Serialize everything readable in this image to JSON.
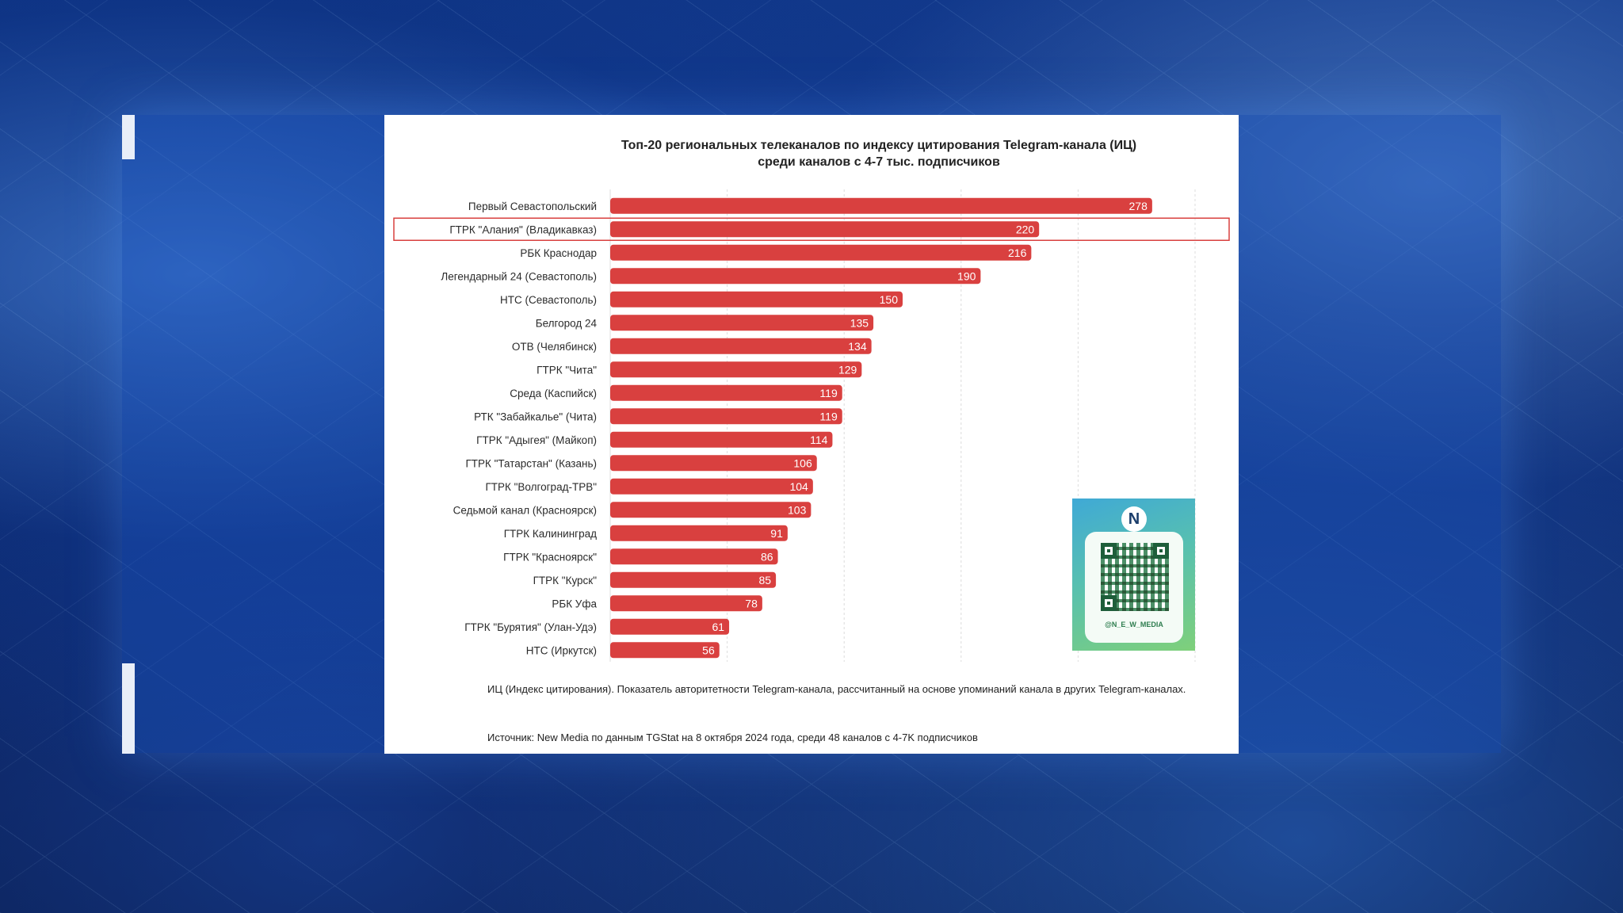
{
  "chart_data": {
    "type": "bar",
    "orientation": "horizontal",
    "title": "Топ-20 региональных телеканалов по индексу цитирования Telegram-канала (ИЦ)",
    "subtitle": "среди каналов с 4-7 тыс. подписчиков",
    "categories": [
      "Первый Севастопольский",
      "ГТРК \"Алания\" (Владикавказ)",
      "РБК Краснодар",
      "Легендарный 24 (Севастополь)",
      "НТС (Севастополь)",
      "Белгород 24",
      "ОТВ (Челябинск)",
      "ГТРК \"Чита\"",
      "Среда (Каспийск)",
      "РТК \"Забайкалье\" (Чита)",
      "ГТРК \"Адыгея\" (Майкоп)",
      "ГТРК \"Татарстан\" (Казань)",
      "ГТРК \"Волгоград-ТРВ\"",
      "Седьмой канал (Красноярск)",
      "ГТРК Калининград",
      "ГТРК \"Красноярск\"",
      "ГТРК \"Курск\"",
      "РБК Уфа",
      "ГТРК \"Бурятия\" (Улан-Удэ)",
      "НТС (Иркутск)"
    ],
    "values": [
      278,
      220,
      216,
      190,
      150,
      135,
      134,
      129,
      119,
      119,
      114,
      106,
      104,
      103,
      91,
      86,
      85,
      78,
      61,
      56
    ],
    "xlim": [
      0,
      300
    ],
    "xticks": [
      0,
      60,
      120,
      180,
      240,
      300
    ],
    "highlighted_category": "ГТРК \"Алания\" (Владикавказ)",
    "bar_color": "#d9403f",
    "highlight_color": "#d9403f",
    "grid": true
  },
  "notes": {
    "definition": "ИЦ (Индекс цитирования). Показатель авторитетности Telegram-канала, рассчитанный на основе упоминаний канала в других Telegram-каналах.",
    "source": "Источник: New Media по данным TGStat на 8 октября 2024 года, среди 48 каналов с 4-7K подписчиков"
  },
  "qr": {
    "handle": "@N_E_W_MEDIA",
    "logo_letter": "N"
  }
}
